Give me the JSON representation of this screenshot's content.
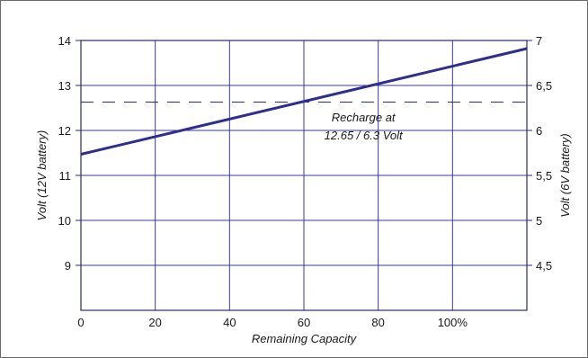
{
  "chart_data": {
    "type": "line",
    "title": "",
    "xlabel": "Remaining Capacity",
    "ylabel": "Volt (12V battery)",
    "y2label": "Volt (6V battery)",
    "xlim": [
      0,
      120
    ],
    "ylim": [
      8,
      14
    ],
    "y2lim": [
      4,
      7
    ],
    "x_ticks": [
      {
        "value": 0,
        "label": "0"
      },
      {
        "value": 20,
        "label": "20"
      },
      {
        "value": 40,
        "label": "40"
      },
      {
        "value": 60,
        "label": "60"
      },
      {
        "value": 80,
        "label": "80"
      },
      {
        "value": 100,
        "label": "100%"
      }
    ],
    "y_ticks": [
      {
        "value": 9,
        "label": "9"
      },
      {
        "value": 10,
        "label": "10"
      },
      {
        "value": 11,
        "label": "11"
      },
      {
        "value": 12,
        "label": "12"
      },
      {
        "value": 13,
        "label": "13"
      },
      {
        "value": 14,
        "label": "14"
      }
    ],
    "y2_ticks": [
      {
        "value": 4.5,
        "label": "4,5"
      },
      {
        "value": 5,
        "label": "5"
      },
      {
        "value": 5.5,
        "label": "5,5"
      },
      {
        "value": 6,
        "label": "6"
      },
      {
        "value": 6.5,
        "label": "6,5"
      },
      {
        "value": 7,
        "label": "7"
      }
    ],
    "grid": true,
    "series": [
      {
        "x": [
          0,
          120
        ],
        "y": [
          11.47,
          13.82
        ],
        "color": "#2e2e8f"
      }
    ],
    "reference_line": {
      "y": 12.63,
      "style": "dashed",
      "color": "#2e2e8f"
    },
    "annotation": {
      "line1": "Recharge at",
      "line2": "12.65 /  6.3 Volt",
      "x": 76,
      "y": 12.0
    },
    "colors": {
      "grid": "#3a3aa0",
      "frame": "#2a2a6e",
      "series": "#2e2e8f"
    }
  }
}
